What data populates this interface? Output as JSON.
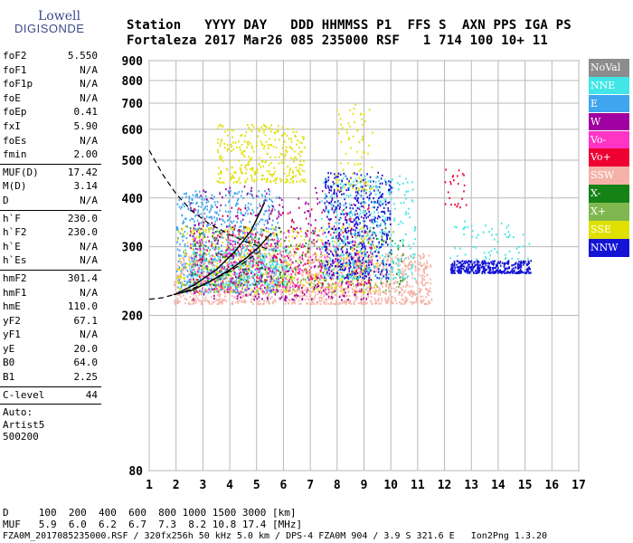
{
  "logo": {
    "line1": "Lowell",
    "line2": "DIGISONDE"
  },
  "header": {
    "line1": "Station   YYYY DAY   DDD HHMMSS P1  FFS S  AXN PPS IGA PS",
    "line2": "Fortaleza 2017 Mar26 085 235000 RSF   1 714 100 10+ 11"
  },
  "params": [
    {
      "label": "foF2",
      "value": "5.550"
    },
    {
      "label": "foF1",
      "value": "N/A"
    },
    {
      "label": "foF1p",
      "value": "N/A"
    },
    {
      "label": "foE",
      "value": "N/A"
    },
    {
      "label": "foEp",
      "value": "0.41"
    },
    {
      "label": "fxI",
      "value": "5.90"
    },
    {
      "label": "foEs",
      "value": "N/A"
    },
    {
      "label": "fmin",
      "value": "2.00"
    },
    {
      "sep": true
    },
    {
      "label": "MUF(D)",
      "value": "17.42"
    },
    {
      "label": "M(D)",
      "value": "3.14"
    },
    {
      "label": "D",
      "value": "N/A"
    },
    {
      "sep": true
    },
    {
      "label": "h`F",
      "value": "230.0"
    },
    {
      "label": "h`F2",
      "value": "230.0"
    },
    {
      "label": "h`E",
      "value": "N/A"
    },
    {
      "label": "h`Es",
      "value": "N/A"
    },
    {
      "sep": true
    },
    {
      "label": "hmF2",
      "value": "301.4"
    },
    {
      "label": "hmF1",
      "value": "N/A"
    },
    {
      "label": "hmE",
      "value": "110.0"
    },
    {
      "label": "yF2",
      "value": "67.1"
    },
    {
      "label": "yF1",
      "value": "N/A"
    },
    {
      "label": "yE",
      "value": "20.0"
    },
    {
      "label": "B0",
      "value": "64.0"
    },
    {
      "label": "B1",
      "value": "2.25"
    },
    {
      "sep": true
    },
    {
      "label": "C-level",
      "value": "44"
    },
    {
      "sep": true
    }
  ],
  "auto": {
    "line1": "Auto:",
    "line2": "Artist5",
    "line3": "500200"
  },
  "footer": {
    "line1": "D     100  200  400  600  800 1000 1500 3000 [km]",
    "line2": "MUF   5.9  6.0  6.2  6.7  7.3  8.2 10.8 17.4 [MHz]",
    "line3": "FZA0M_2017085235000.RSF / 320fx256h 50 kHz 5.0 km / DPS-4 FZA0M 904 / 3.9 S 321.6 E   Ion2Png 1.3.20"
  },
  "legend": [
    {
      "label": "NoVal",
      "color": "#8c8c8c"
    },
    {
      "label": "NNE",
      "color": "#41e6e6"
    },
    {
      "label": "E",
      "color": "#3fa5ef"
    },
    {
      "label": "W",
      "color": "#a0009f"
    },
    {
      "label": "Vo-",
      "color": "#ff33c4"
    },
    {
      "label": "Vo+",
      "color": "#ee0033"
    },
    {
      "label": "SSW",
      "color": "#f5b2a8"
    },
    {
      "label": "X-",
      "color": "#148214"
    },
    {
      "label": "X+",
      "color": "#80b850"
    },
    {
      "label": "SSE",
      "color": "#e0e000"
    },
    {
      "label": "NNW",
      "color": "#1414d4"
    }
  ],
  "chart_data": {
    "type": "scatter",
    "x_scale": "linear",
    "y_scale": "log",
    "xlim": [
      1,
      17
    ],
    "ylim": [
      80,
      900
    ],
    "x_ticks": [
      "1",
      "2",
      "3",
      "4",
      "5",
      "6",
      "7",
      "8",
      "9",
      "10",
      "11",
      "12",
      "13",
      "14",
      "15",
      "16",
      "17"
    ],
    "y_ticks": [
      {
        "value": 80,
        "label": "80"
      },
      {
        "value": 200,
        "label": "200"
      },
      {
        "value": 300,
        "label": "300"
      },
      {
        "value": 400,
        "label": "400"
      },
      {
        "value": 500,
        "label": "500"
      },
      {
        "value": 600,
        "label": "600"
      },
      {
        "value": 700,
        "label": "700"
      },
      {
        "value": 800,
        "label": "800"
      },
      {
        "value": 900,
        "label": "900"
      }
    ],
    "grid": true,
    "clusters": [
      {
        "name": "SSW",
        "x": [
          1.9,
          11.5
        ],
        "y": [
          215,
          290
        ],
        "n": 1400
      },
      {
        "name": "E",
        "x": [
          2.0,
          5.8
        ],
        "y": [
          230,
          420
        ],
        "n": 700
      },
      {
        "name": "NNE",
        "x": [
          2.5,
          6.2
        ],
        "y": [
          240,
          300
        ],
        "n": 300
      },
      {
        "name": "SSE",
        "x": [
          3.5,
          6.8
        ],
        "y": [
          440,
          620
        ],
        "n": 320
      },
      {
        "name": "SSE",
        "x": [
          2.0,
          9.5
        ],
        "y": [
          230,
          340
        ],
        "n": 500
      },
      {
        "name": "W",
        "x": [
          2.5,
          9.3
        ],
        "y": [
          220,
          430
        ],
        "n": 450
      },
      {
        "name": "Vo-",
        "x": [
          2.5,
          9.3
        ],
        "y": [
          230,
          330
        ],
        "n": 350
      },
      {
        "name": "Vo+",
        "x": [
          2.5,
          9.3
        ],
        "y": [
          240,
          380
        ],
        "n": 120
      },
      {
        "name": "X-",
        "x": [
          2.5,
          10.5
        ],
        "y": [
          240,
          340
        ],
        "n": 180
      },
      {
        "name": "X+",
        "x": [
          2.5,
          10.5
        ],
        "y": [
          230,
          330
        ],
        "n": 150
      },
      {
        "name": "NNW",
        "x": [
          7.5,
          10.0
        ],
        "y": [
          250,
          470
        ],
        "n": 500
      },
      {
        "name": "NNE",
        "x": [
          7.4,
          10.9
        ],
        "y": [
          250,
          460
        ],
        "n": 350
      },
      {
        "name": "NNW",
        "x": [
          12.2,
          15.2
        ],
        "y": [
          258,
          278
        ],
        "n": 380
      },
      {
        "name": "NNE",
        "x": [
          12.2,
          15.2
        ],
        "y": [
          280,
          355
        ],
        "n": 60
      },
      {
        "name": "Vo+",
        "x": [
          12.0,
          12.8
        ],
        "y": [
          380,
          480
        ],
        "n": 25
      },
      {
        "name": "SSE",
        "x": [
          7.9,
          9.3
        ],
        "y": [
          420,
          700
        ],
        "n": 80
      }
    ],
    "profile": {
      "name": "profile",
      "x": [
        1.9,
        2.6,
        3.3,
        4.0,
        4.6,
        5.1,
        5.55
      ],
      "y": [
        226,
        232,
        245,
        262,
        280,
        300,
        325
      ]
    },
    "trace": {
      "name": "trace",
      "x": [
        1.95,
        2.7,
        3.5,
        4.2,
        4.8,
        5.3
      ],
      "y": [
        226,
        240,
        262,
        292,
        330,
        390
      ]
    },
    "muf_curve": {
      "name": "MUF",
      "x": [
        1.0,
        1.5,
        2.0,
        2.6,
        3.2,
        4.0,
        4.8,
        5.5,
        1.5,
        2.3,
        3.0,
        3.8,
        4.5,
        5.2
      ],
      "y": [
        530,
        460,
        410,
        370,
        345,
        322,
        305,
        295,
        222,
        230,
        240,
        255,
        272,
        295
      ]
    }
  }
}
